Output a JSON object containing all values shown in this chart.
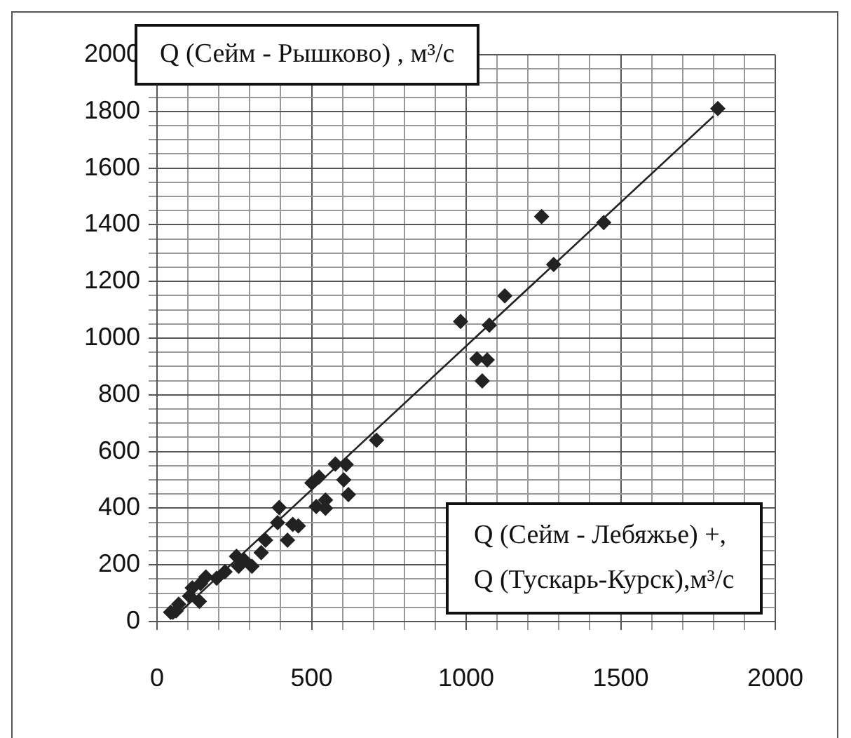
{
  "chart_data": {
    "type": "scatter",
    "xlabel": "Q (Сейм - Лебяжье) +,\nQ (Тускарь-Курск),м³/с",
    "ylabel": "Q (Сейм - Рышково) , м³/с",
    "xlim": [
      0,
      2000
    ],
    "ylim": [
      0,
      2000
    ],
    "xticks": [
      0,
      {
        "value": 100,
        "label": null
      },
      {
        "value": 200,
        "label": null
      },
      {
        "value": 300,
        "label": null
      },
      {
        "value": 400,
        "label": null
      },
      500,
      {
        "value": 600,
        "label": null
      },
      {
        "value": 700,
        "label": null
      },
      {
        "value": 800,
        "label": null
      },
      {
        "value": 900,
        "label": null
      },
      1000,
      {
        "value": 1100,
        "label": null
      },
      {
        "value": 1200,
        "label": null
      },
      {
        "value": 1300,
        "label": null
      },
      {
        "value": 1400,
        "label": null
      },
      1500,
      {
        "value": 1600,
        "label": null
      },
      {
        "value": 1700,
        "label": null
      },
      {
        "value": 1800,
        "label": null
      },
      {
        "value": 1900,
        "label": null
      },
      2000
    ],
    "yticks": [
      0,
      {
        "value": 50,
        "label": null
      },
      {
        "value": 100,
        "label": null
      },
      {
        "value": 150,
        "label": null
      },
      200,
      {
        "value": 250,
        "label": null
      },
      {
        "value": 300,
        "label": null
      },
      {
        "value": 350,
        "label": null
      },
      400,
      {
        "value": 450,
        "label": null
      },
      {
        "value": 500,
        "label": null
      },
      {
        "value": 550,
        "label": null
      },
      600,
      {
        "value": 650,
        "label": null
      },
      {
        "value": 700,
        "label": null
      },
      {
        "value": 750,
        "label": null
      },
      800,
      {
        "value": 850,
        "label": null
      },
      {
        "value": 900,
        "label": null
      },
      {
        "value": 950,
        "label": null
      },
      1000,
      {
        "value": 1050,
        "label": null
      },
      {
        "value": 1100,
        "label": null
      },
      {
        "value": 1150,
        "label": null
      },
      1200,
      {
        "value": 1250,
        "label": null
      },
      {
        "value": 1300,
        "label": null
      },
      {
        "value": 1350,
        "label": null
      },
      1400,
      {
        "value": 1450,
        "label": null
      },
      {
        "value": 1500,
        "label": null
      },
      {
        "value": 1550,
        "label": null
      },
      1600,
      {
        "value": 1650,
        "label": null
      },
      {
        "value": 1700,
        "label": null
      },
      {
        "value": 1750,
        "label": null
      },
      1800,
      {
        "value": 1850,
        "label": null
      },
      {
        "value": 1900,
        "label": null
      },
      {
        "value": 1950,
        "label": null
      },
      2000
    ],
    "grid": true,
    "legend": false,
    "series": [
      {
        "type": "scatter",
        "color": "#222222",
        "marker": "diamond",
        "x": [
          1814,
          1244,
          1445,
          1283,
          1125,
          982,
          1075,
          1035,
          1068,
          1052,
          710,
          577,
          612,
          604,
          619,
          501,
          524,
          515,
          545,
          545,
          395,
          390,
          422,
          439,
          457,
          351,
          337,
          307,
          257,
          264,
          220,
          193,
          158,
          141,
          137,
          105,
          70,
          44,
          62,
          114,
          281
        ],
        "values": [
          1810,
          1429,
          1408,
          1260,
          1149,
          1059,
          1046,
          927,
          923,
          849,
          640,
          556,
          554,
          500,
          448,
          489,
          510,
          406,
          429,
          400,
          402,
          349,
          287,
          343,
          337,
          287,
          243,
          195,
          230,
          195,
          176,
          153,
          157,
          134,
          71,
          90,
          61,
          33,
          38,
          119,
          218
        ]
      },
      {
        "type": "line",
        "color": "#222222",
        "marker": "none",
        "line_style": "solid",
        "x": [
          49,
          1800
        ],
        "values": [
          8,
          1783
        ]
      }
    ]
  }
}
